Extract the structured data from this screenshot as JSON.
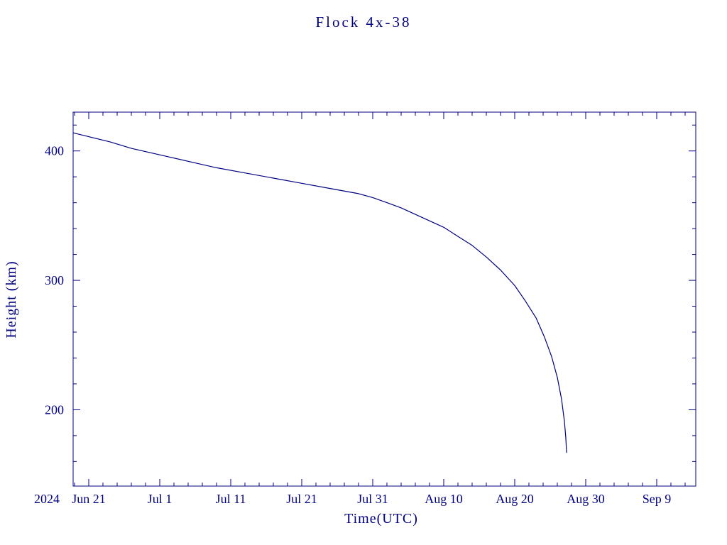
{
  "page": {
    "background": "#ffffff"
  },
  "chart_data": {
    "type": "line",
    "title": "Flock 4x-38",
    "xlabel": "Time(UTC)",
    "ylabel": "Height (km)",
    "year_label": "2024",
    "line_color": "#000080",
    "axis_color": "#000080",
    "grid": false,
    "legend": false,
    "x_unit": "days since 2024 Jun 21",
    "xlim_days": [
      -2.2,
      85.5
    ],
    "ylim": [
      141,
      430
    ],
    "x_ticks": [
      {
        "day": 0,
        "label": "Jun 21"
      },
      {
        "day": 10,
        "label": "Jul 1"
      },
      {
        "day": 20,
        "label": "Jul 11"
      },
      {
        "day": 30,
        "label": "Jul 21"
      },
      {
        "day": 40,
        "label": "Jul 31"
      },
      {
        "day": 50,
        "label": "Aug 10"
      },
      {
        "day": 60,
        "label": "Aug 20"
      },
      {
        "day": 70,
        "label": "Aug 30"
      },
      {
        "day": 80,
        "label": "Sep 9"
      }
    ],
    "x_minor_step_days": 2,
    "y_ticks": [
      200,
      300,
      400
    ],
    "y_minor_step": 20,
    "series": [
      {
        "name": "orbit-height",
        "x_days": [
          -2.2,
          0,
          3,
          6,
          10,
          14,
          18,
          22,
          26,
          30,
          34,
          38,
          40,
          42,
          44,
          46,
          48,
          50,
          52,
          54,
          56,
          58,
          60,
          61.5,
          63,
          64.2,
          65.2,
          66,
          66.6,
          67,
          67.2,
          67.3
        ],
        "values": [
          414,
          411,
          407,
          402,
          397,
          392,
          387,
          383,
          379,
          375,
          371,
          367,
          364,
          360,
          356,
          351,
          346,
          341,
          334,
          327,
          318,
          308,
          296,
          284,
          271,
          256,
          241,
          225,
          208,
          191,
          178,
          167
        ]
      }
    ]
  }
}
